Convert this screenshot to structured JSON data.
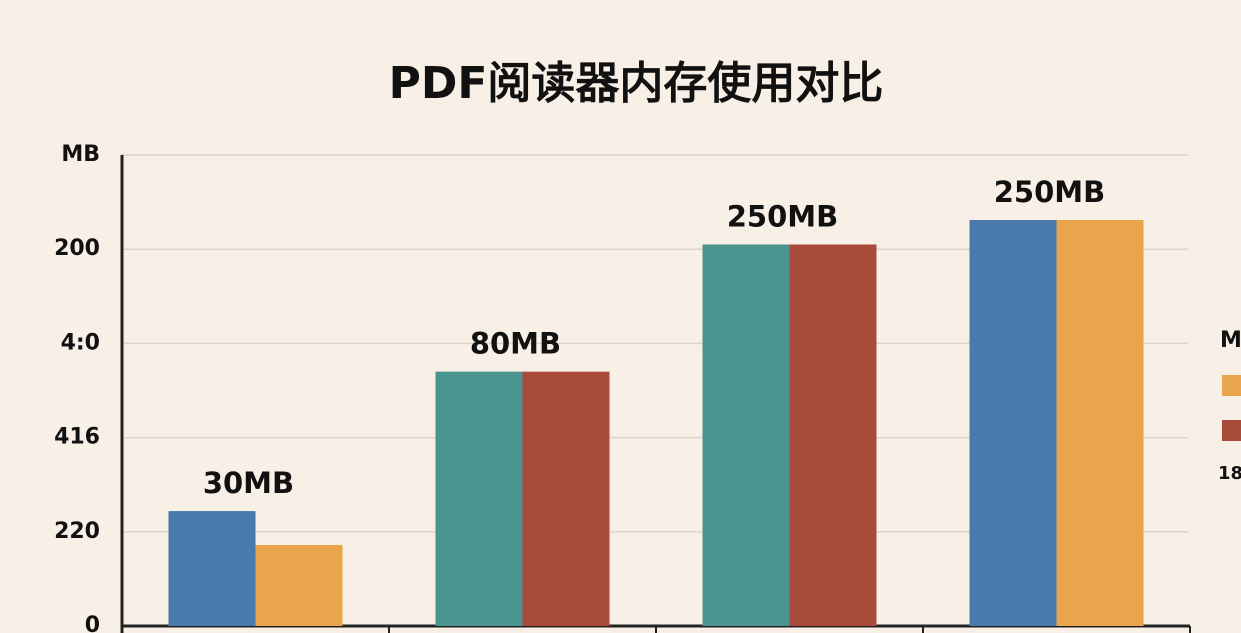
{
  "chart_data": {
    "type": "bar",
    "title": "PDF阅读器内存使用对比",
    "categories": [
      null,
      null,
      null,
      null
    ],
    "series": [
      {
        "values": [
          1.22,
          2.7,
          4.05,
          4.31
        ],
        "colors": [
          "#4a7aad",
          "#4a9590",
          "#4a9590",
          "#4a7aad"
        ]
      },
      {
        "values": [
          0.86,
          2.7,
          4.05,
          4.31
        ],
        "colors": [
          "#e8a54b",
          "#a84b3a",
          "#a84b3a",
          "#e8a54b"
        ]
      }
    ],
    "annotations": [
      "30MB",
      "80MB",
      "250MB",
      "250MB"
    ],
    "ylim": [
      0,
      5
    ],
    "yticks": [
      {
        "value": 0,
        "label": "0"
      },
      {
        "value": 1,
        "label": "220"
      },
      {
        "value": 2,
        "label": "416"
      },
      {
        "value": 3,
        "label": "4:0"
      },
      {
        "value": 4,
        "label": "200"
      },
      {
        "value": 5,
        "label": "MB"
      }
    ],
    "grid": true,
    "legend": {
      "title": "M",
      "swatches": [
        "#e8a54b",
        "#a84b3a"
      ],
      "footer": "18"
    }
  }
}
